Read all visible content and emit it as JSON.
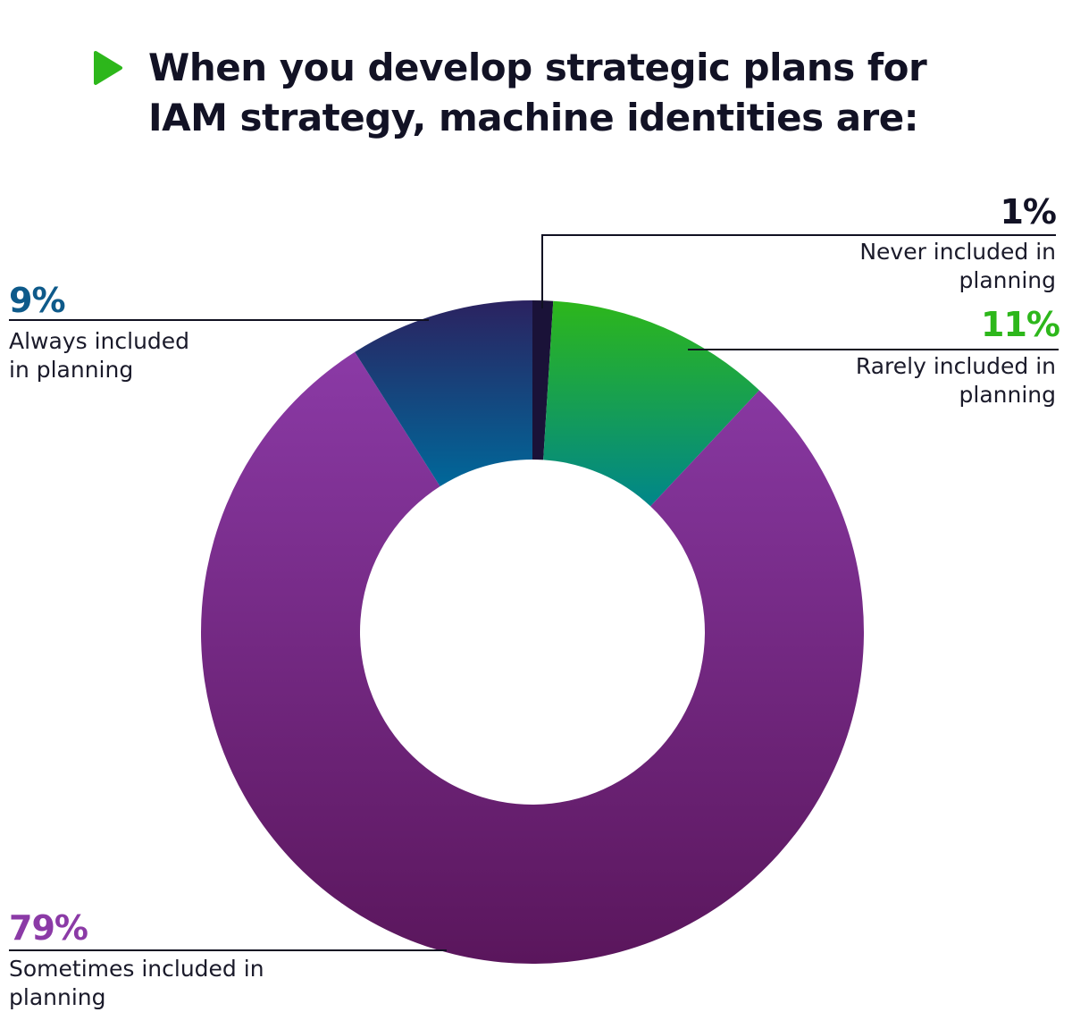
{
  "title": "When you develop strategic plans for IAM strategy, machine identities are:",
  "title_icon": "play-triangle-icon",
  "colors": {
    "title_icon": "#2db71b",
    "title_text": "#121225",
    "leader_line": "#111122"
  },
  "chart_data": {
    "type": "pie",
    "variant": "donut",
    "title": "When you develop strategic plans for IAM strategy, machine identities are:",
    "unit": "%",
    "slices": [
      {
        "key": "never",
        "label": "Never included in planning",
        "value": 1,
        "value_label": "1%",
        "color_top": "#1a1238",
        "color_bottom": "#1a1238",
        "label_color": "#121225"
      },
      {
        "key": "rarely",
        "label": "Rarely included in planning",
        "value": 11,
        "value_label": "11%",
        "color_top": "#2db71b",
        "color_bottom": "#00868a",
        "label_color": "#2db71b"
      },
      {
        "key": "sometimes",
        "label": "Sometimes included in planning",
        "value": 79,
        "value_label": "79%",
        "color_top": "#8b3aa6",
        "color_bottom": "#5a165c",
        "label_color": "#8b3aa6"
      },
      {
        "key": "always",
        "label": "Always included in planning",
        "value": 9,
        "value_label": "9%",
        "color_top": "#2b2260",
        "color_bottom": "#00689a",
        "label_color": "#0e5a8a"
      }
    ]
  }
}
